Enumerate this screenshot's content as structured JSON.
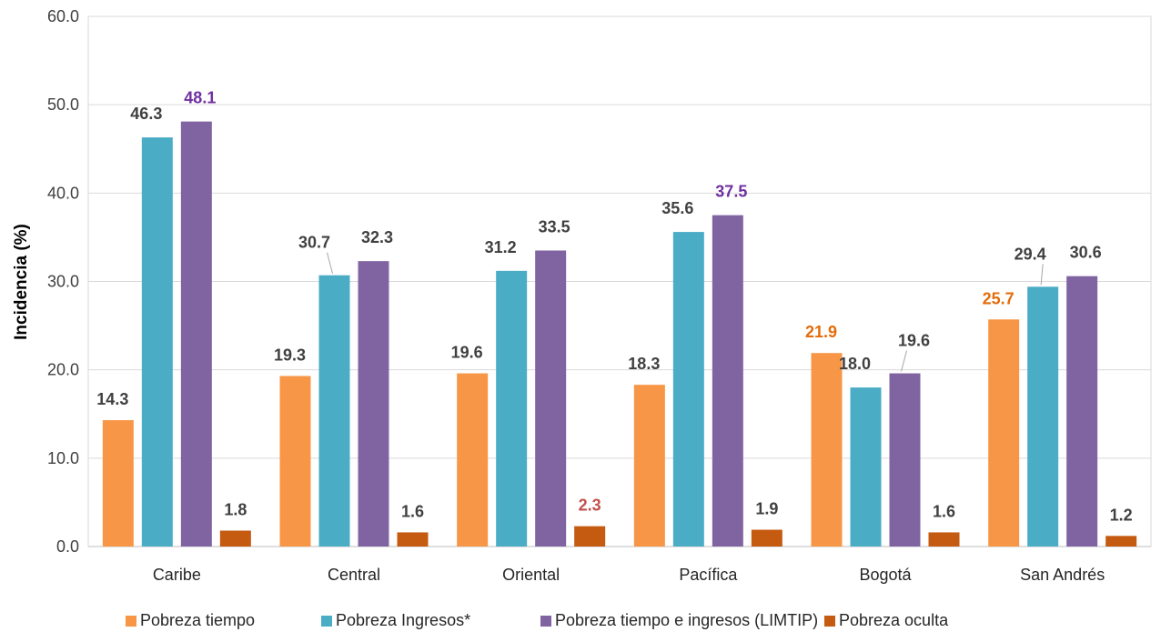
{
  "chart_data": {
    "type": "bar",
    "ylabel": "Incidencia (%)",
    "ylim": [
      0,
      60
    ],
    "yticks": [
      "0.0",
      "10.0",
      "20.0",
      "30.0",
      "40.0",
      "50.0",
      "60.0"
    ],
    "grid": true,
    "legend_position": "bottom",
    "categories": [
      "Caribe",
      "Central",
      "Oriental",
      "Pacífica",
      "Bogotá",
      "San Andrés"
    ],
    "series": [
      {
        "name": "Pobreza tiempo",
        "color": "#F79646",
        "values": [
          14.3,
          19.3,
          19.6,
          18.3,
          21.9,
          25.7
        ],
        "labels": [
          "14.3",
          "19.3",
          "19.6",
          "18.3",
          "21.9",
          "25.7"
        ],
        "label_colors": [
          "#404040",
          "#404040",
          "#404040",
          "#404040",
          "#E46C0A",
          "#E46C0A"
        ]
      },
      {
        "name": "Pobreza Ingresos*",
        "color": "#4BACC6",
        "values": [
          46.3,
          30.7,
          31.2,
          35.6,
          18.0,
          29.4
        ],
        "labels": [
          "46.3",
          "30.7",
          "31.2",
          "35.6",
          "18.0",
          "29.4"
        ],
        "label_colors": [
          "#404040",
          "#404040",
          "#404040",
          "#404040",
          "#404040",
          "#404040"
        ]
      },
      {
        "name": "Pobreza tiempo e ingresos (LIMTIP)",
        "color": "#8064A2",
        "values": [
          48.1,
          32.3,
          33.5,
          37.5,
          19.6,
          30.6
        ],
        "labels": [
          "48.1",
          "32.3",
          "33.5",
          "37.5",
          "19.6",
          "30.6"
        ],
        "label_colors": [
          "#7030A0",
          "#404040",
          "#404040",
          "#7030A0",
          "#404040",
          "#404040"
        ]
      },
      {
        "name": "Pobreza oculta",
        "color": "#C55A11",
        "values": [
          1.8,
          1.6,
          2.3,
          1.9,
          1.6,
          1.2
        ],
        "labels": [
          "1.8",
          "1.6",
          "2.3",
          "1.9",
          "1.6",
          "1.2"
        ],
        "label_colors": [
          "#404040",
          "#404040",
          "#C0504D",
          "#404040",
          "#404040",
          "#404040"
        ]
      }
    ]
  }
}
